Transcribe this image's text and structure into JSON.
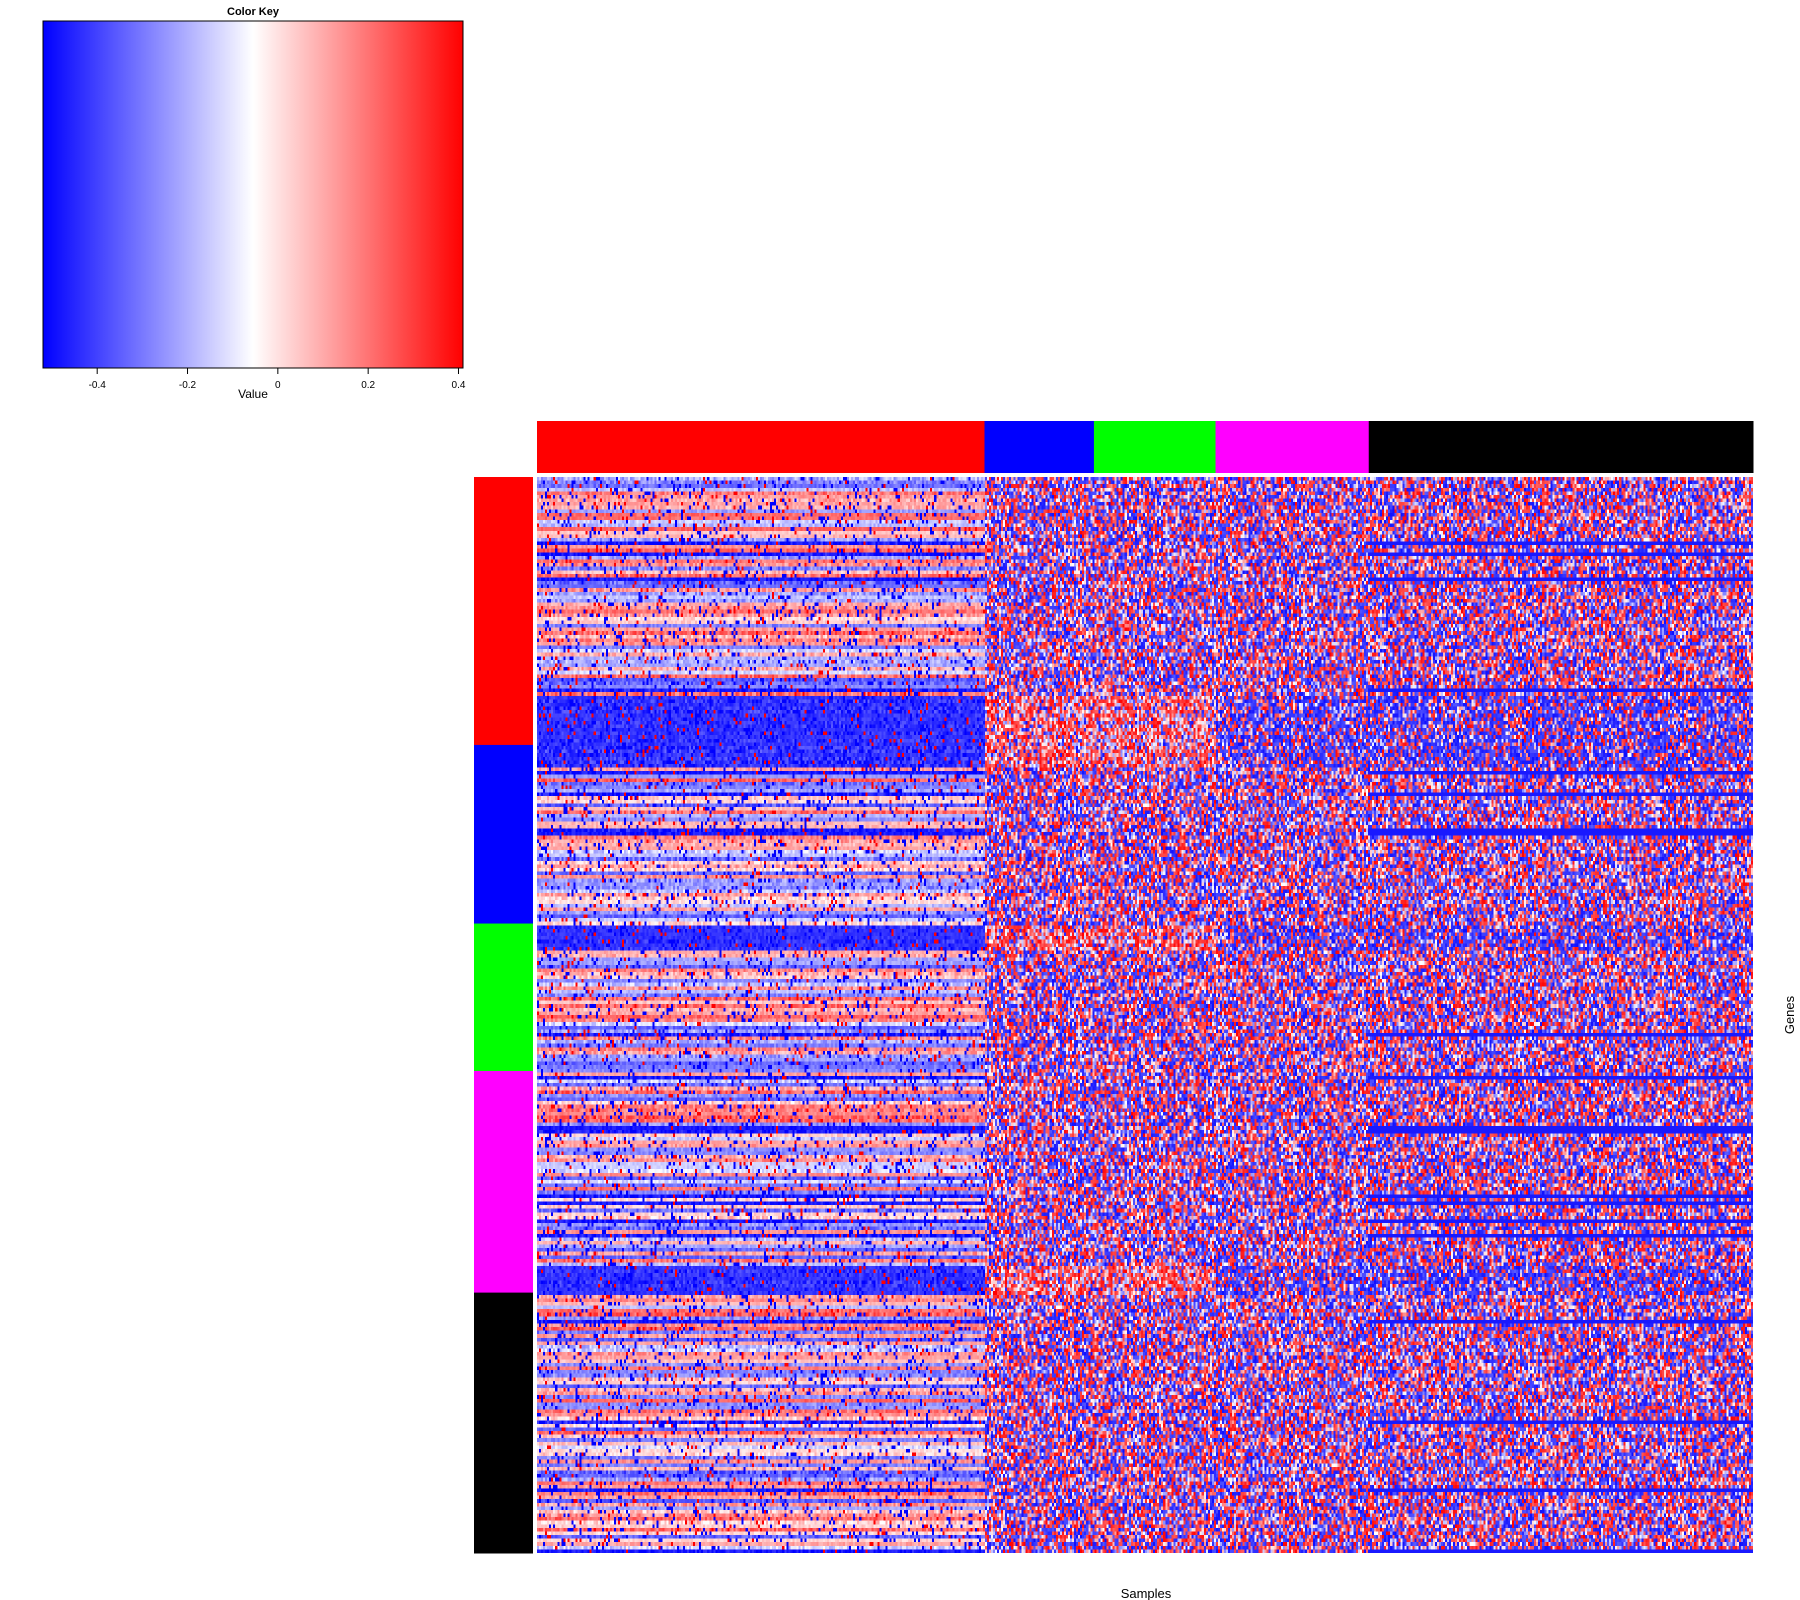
{
  "chart_data": {
    "type": "heatmap",
    "title": "",
    "xlabel": "Samples",
    "ylabel": "Genes",
    "color_key": {
      "title": "Color Key",
      "xlabel": "Value",
      "range": [
        -0.52,
        0.41
      ],
      "ticks": [
        -0.4,
        -0.2,
        0,
        0.2,
        0.4
      ],
      "tick_labels": [
        "-0.4",
        "-0.2",
        "0",
        "0.2",
        "0.4"
      ],
      "low_color": "#0000ff",
      "mid_color": "#ffffff",
      "high_color": "#ff0000",
      "midpoint": -0.055
    },
    "column_groups": [
      {
        "color": "#ff0000",
        "fraction": 0.368
      },
      {
        "color": "#0000ff",
        "fraction": 0.09
      },
      {
        "color": "#00ff00",
        "fraction": 0.1
      },
      {
        "color": "#ff00ff",
        "fraction": 0.126
      },
      {
        "color": "#000000",
        "fraction": 0.316
      }
    ],
    "row_groups": [
      {
        "color": "#ff0000",
        "fraction": 0.249
      },
      {
        "color": "#0000ff",
        "fraction": 0.166
      },
      {
        "color": "#00ff00",
        "fraction": 0.137
      },
      {
        "color": "#ff00ff",
        "fraction": 0.206
      },
      {
        "color": "#000000",
        "fraction": 0.242
      }
    ],
    "grid": false
  }
}
